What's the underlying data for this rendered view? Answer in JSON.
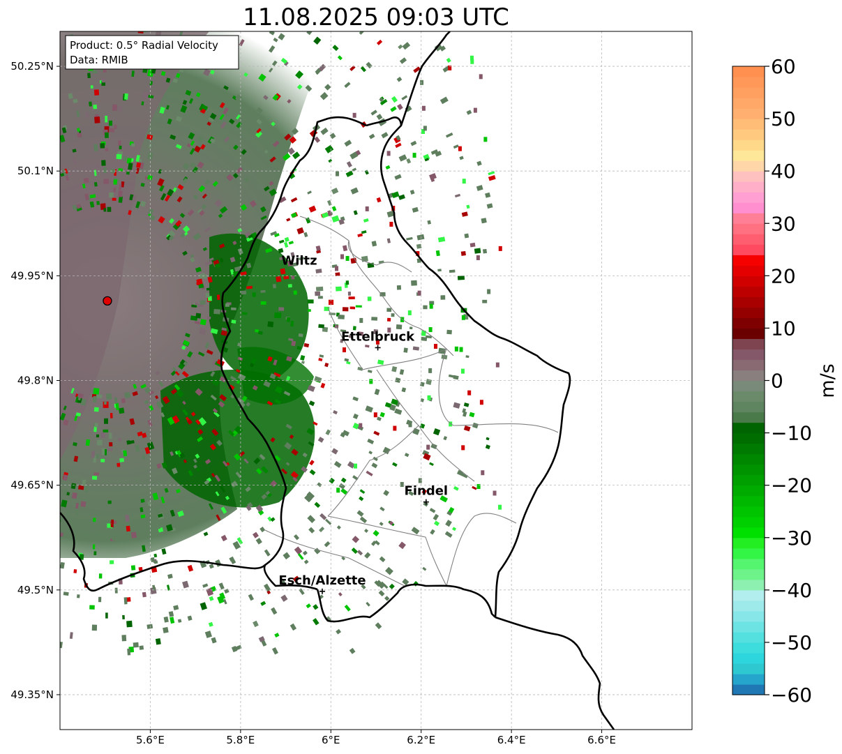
{
  "title": "11.08.2025 09:03 UTC",
  "info_box": {
    "product": "Product: 0.5° Radial Velocity",
    "source": "Data: RMIB"
  },
  "axes": {
    "lon_range": [
      5.4,
      6.8
    ],
    "lat_range": [
      49.3,
      50.3
    ],
    "x_ticks": [
      "5.6°E",
      "5.8°E",
      "6°E",
      "6.2°E",
      "6.4°E",
      "6.6°E"
    ],
    "x_tick_values": [
      5.6,
      5.8,
      6.0,
      6.2,
      6.4,
      6.6
    ],
    "y_ticks": [
      "49.35°N",
      "49.5°N",
      "49.65°N",
      "49.8°N",
      "49.95°N",
      "50.1°N",
      "50.25°N"
    ],
    "y_tick_values": [
      49.35,
      49.5,
      49.65,
      49.8,
      49.95,
      50.1,
      50.25
    ],
    "grid": true
  },
  "radar_site": {
    "lon": 5.505,
    "lat": 49.914
  },
  "cities": [
    {
      "name": "Wiltz",
      "lon": 5.93,
      "lat": 49.966,
      "marker": false
    },
    {
      "name": "Ettelbruck",
      "lon": 6.104,
      "lat": 49.847,
      "marker": true
    },
    {
      "name": "Findel",
      "lon": 6.211,
      "lat": 49.626,
      "marker": true
    },
    {
      "name": "Esch/Alzette",
      "lon": 5.981,
      "lat": 49.498,
      "marker": true
    }
  ],
  "colorbar": {
    "label": "m/s",
    "range": [
      -60,
      60
    ],
    "ticks": [
      "60",
      "50",
      "40",
      "30",
      "20",
      "10",
      "0",
      "−10",
      "−20",
      "−30",
      "−40",
      "−50",
      "−60"
    ],
    "tick_values": [
      60,
      50,
      40,
      30,
      20,
      10,
      0,
      -10,
      -20,
      -30,
      -40,
      -50,
      -60
    ],
    "colors_bottom_to_top": [
      "#1f78b4",
      "#26a5cc",
      "#2ec8d0",
      "#2dd6dc",
      "#3ddcdd",
      "#55e0e0",
      "#6ee3e4",
      "#86e6e8",
      "#9ee9ea",
      "#b3eeef",
      "#8ef0b0",
      "#6ef28a",
      "#55f570",
      "#33f545",
      "#22ee22",
      "#00e000",
      "#00d000",
      "#00c400",
      "#00b800",
      "#00ab00",
      "#009f00",
      "#009300",
      "#008700",
      "#007a00",
      "#006d00",
      "#006400",
      "#4a7a4a",
      "#5e8460",
      "#6b8a6a",
      "#7a8a7a",
      "#8a7f7f",
      "#8a6a72",
      "#845868",
      "#7e4450",
      "#6a0000",
      "#7e0000",
      "#940000",
      "#a80000",
      "#bc0000",
      "#d00000",
      "#e40000",
      "#f70000",
      "#ff4a5f",
      "#ff5d70",
      "#ff7080",
      "#ff8096",
      "#ff8fcf",
      "#ff9fd2",
      "#ffb0c8",
      "#ffc0c0",
      "#ffd6a8",
      "#ffe79a",
      "#ffd88a",
      "#ffc980",
      "#ffbd78",
      "#ffb070",
      "#ffa868",
      "#ffa060",
      "#ff9858",
      "#ff9050"
    ]
  },
  "velocity_field": {
    "near_radar_range_color": "#7c6870",
    "approaching_core_color": "#006400",
    "background_green": "#5e7e5e"
  }
}
